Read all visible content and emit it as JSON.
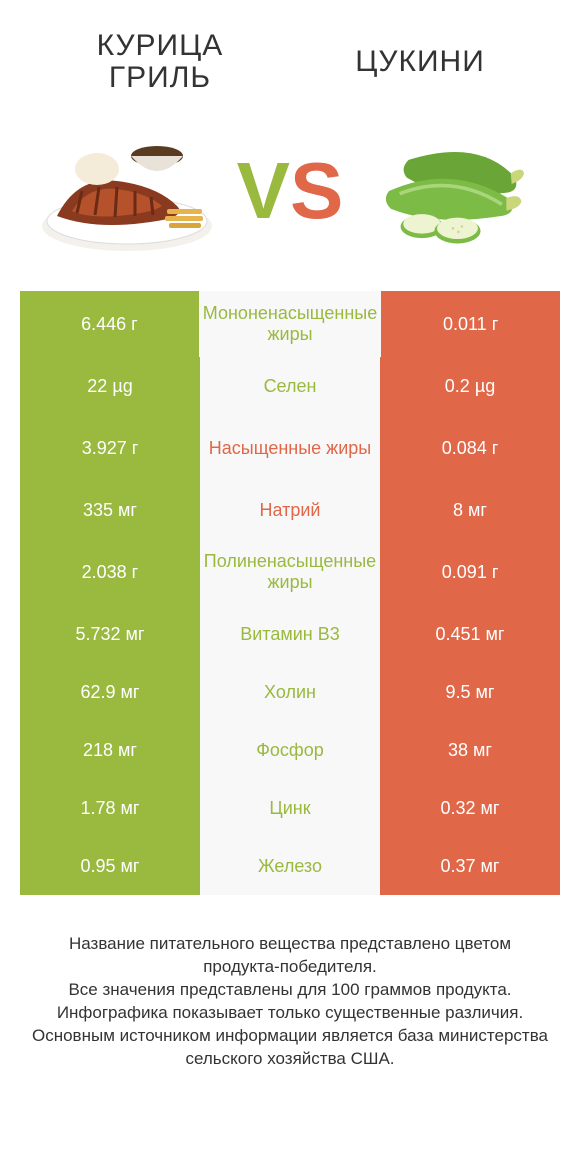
{
  "colors": {
    "green": "#99b93f",
    "orange": "#e06748",
    "nutrient_bg": "#f8f8f8",
    "text": "#333333",
    "white": "#ffffff"
  },
  "header": {
    "left_title": "КУРИЦА ГРИЛЬ",
    "right_title": "ЦУКИНИ",
    "vs_v": "V",
    "vs_s": "S"
  },
  "rows": [
    {
      "left": "6.446 г",
      "nutrient": "Мононенасыщенные жиры",
      "right": "0.011 г",
      "winner": "left",
      "tall": true
    },
    {
      "left": "22 µg",
      "nutrient": "Селен",
      "right": "0.2 µg",
      "winner": "left"
    },
    {
      "left": "3.927 г",
      "nutrient": "Насыщенные жиры",
      "right": "0.084 г",
      "winner": "right",
      "tall": true
    },
    {
      "left": "335 мг",
      "nutrient": "Натрий",
      "right": "8 мг",
      "winner": "right"
    },
    {
      "left": "2.038 г",
      "nutrient": "Полиненасыщенные жиры",
      "right": "0.091 г",
      "winner": "left",
      "tall": true
    },
    {
      "left": "5.732 мг",
      "nutrient": "Витамин B3",
      "right": "0.451 мг",
      "winner": "left"
    },
    {
      "left": "62.9 мг",
      "nutrient": "Холин",
      "right": "9.5 мг",
      "winner": "left"
    },
    {
      "left": "218 мг",
      "nutrient": "Фосфор",
      "right": "38 мг",
      "winner": "left"
    },
    {
      "left": "1.78 мг",
      "nutrient": "Цинк",
      "right": "0.32 мг",
      "winner": "left"
    },
    {
      "left": "0.95 мг",
      "nutrient": "Железо",
      "right": "0.37 мг",
      "winner": "left"
    }
  ],
  "footnotes": [
    "Название питательного вещества представлено цветом продукта-победителя.",
    "Все значения представлены для 100 граммов продукта.",
    "Инфографика показывает только существенные различия.",
    "Основным источником информации является база министерства сельского хозяйства США."
  ]
}
